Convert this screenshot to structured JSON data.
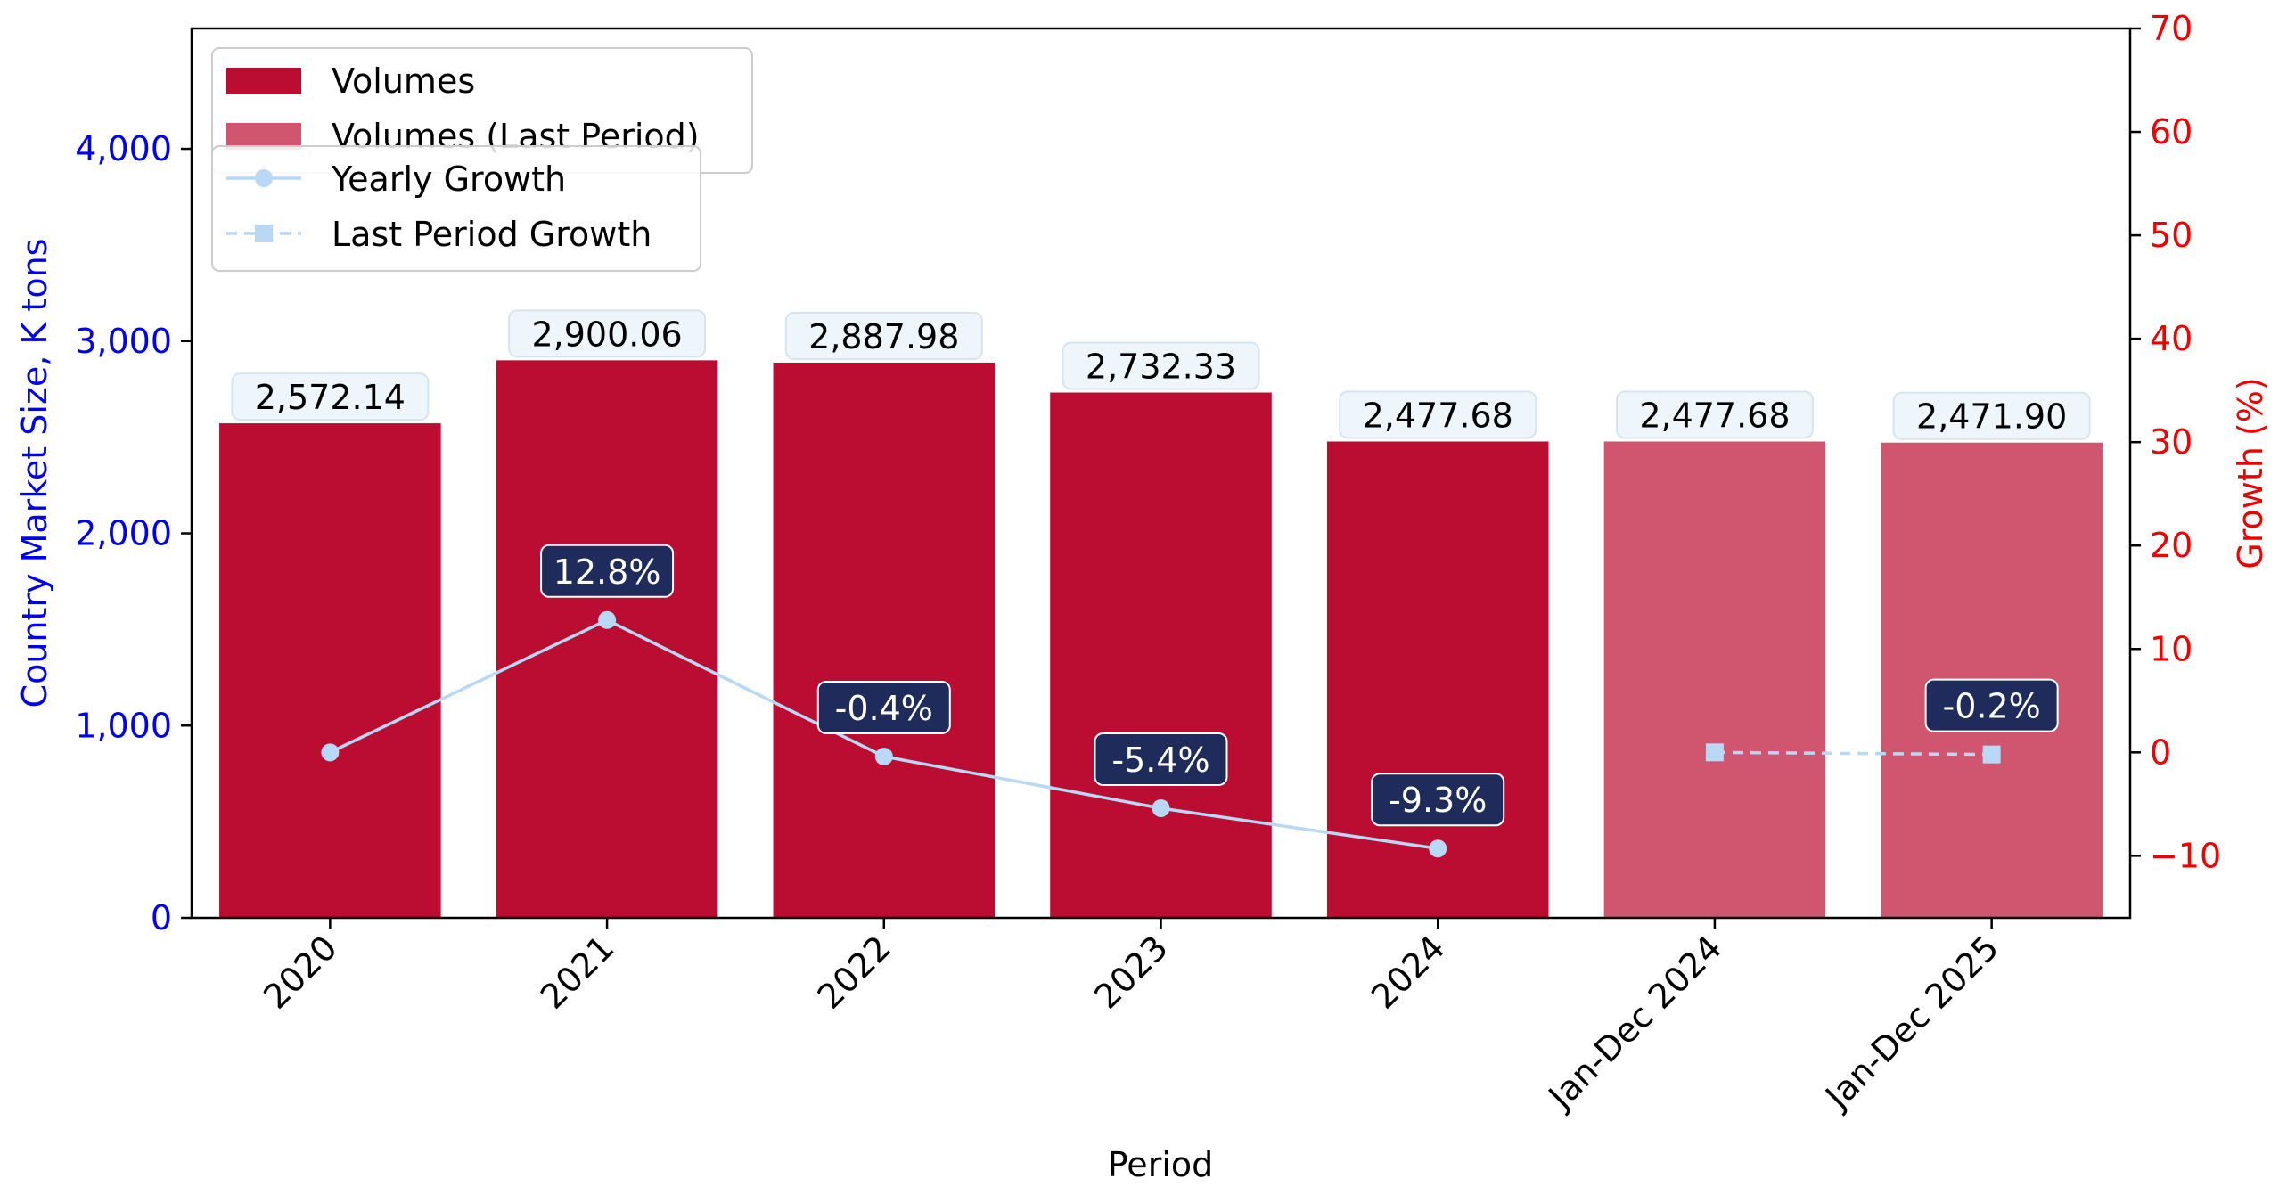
{
  "chart_data": {
    "type": "bar",
    "xlabel": "Period",
    "ylabel": "Country Market Size, K tons",
    "y2label": "Growth (%)",
    "categories": [
      "2020",
      "2021",
      "2022",
      "2023",
      "2024",
      "Jan-Dec 2024",
      "Jan-Dec 2025"
    ],
    "ylim": [
      0,
      4626
    ],
    "y2lim": [
      -16,
      70
    ],
    "yticks": [
      0,
      1000,
      2000,
      3000,
      4000
    ],
    "ytick_labels": [
      "0",
      "1,000",
      "2,000",
      "3,000",
      "4,000"
    ],
    "y2ticks": [
      -10,
      0,
      10,
      20,
      30,
      40,
      50,
      60,
      70
    ],
    "y2tick_labels": [
      "−10",
      "0",
      "10",
      "20",
      "30",
      "40",
      "50",
      "60",
      "70"
    ],
    "grid": false,
    "legend_position": "top-left",
    "series": [
      {
        "name": "Volumes",
        "type": "bar",
        "color": "#BB0D32",
        "values": [
          2572.14,
          2900.06,
          2887.98,
          2732.33,
          2477.68,
          null,
          null
        ],
        "labels": [
          "2,572.14",
          "2,900.06",
          "2,887.98",
          "2,732.33",
          "2,477.68",
          null,
          null
        ]
      },
      {
        "name": "Volumes (Last Period)",
        "type": "bar",
        "color": "#D0566F",
        "values": [
          null,
          null,
          null,
          null,
          null,
          2477.68,
          2471.9
        ],
        "labels": [
          null,
          null,
          null,
          null,
          null,
          "2,477.68",
          "2,471.90"
        ]
      },
      {
        "name": "Yearly Growth",
        "type": "line",
        "axis": "right",
        "color": "#B8D8F5",
        "marker": "circle",
        "values": [
          0,
          12.8,
          -0.4,
          -5.4,
          -9.3,
          null,
          null
        ],
        "labels": [
          null,
          "12.8%",
          "-0.4%",
          "-5.4%",
          "-9.3%",
          null,
          null
        ]
      },
      {
        "name": "Last Period Growth",
        "type": "line",
        "axis": "right",
        "color": "#B8D8F5",
        "marker": "square",
        "dashed": true,
        "values": [
          null,
          null,
          null,
          null,
          null,
          0,
          -0.2
        ],
        "labels": [
          null,
          null,
          null,
          null,
          null,
          null,
          "-0.2%"
        ]
      }
    ],
    "colors": {
      "left_axis": "#0000EE",
      "right_axis": "#EE0000",
      "value_box_fill": "#EEF6FC",
      "growth_box_fill": "#1F2B5B"
    }
  }
}
